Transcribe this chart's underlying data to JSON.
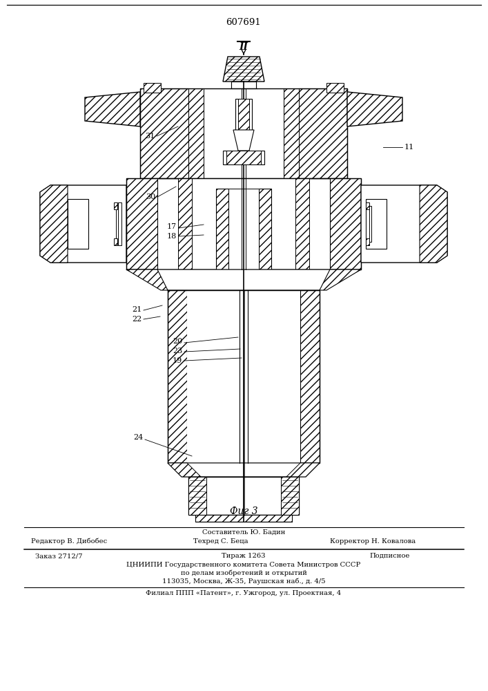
{
  "patent_number": "607691",
  "figure_label": "Фиг 3",
  "section_label": "II",
  "footer": {
    "editor": "Редактор В. Дибобес",
    "composer": "Составитель Ю. Бадин",
    "techred": "Техред С. Беца",
    "corrector": "Корректор Н. Ковалова",
    "order": "Заказ 2712/7",
    "circulation": "Тираж 1263",
    "subscription": "Подписное",
    "org1": "ЦНИИПИ Государственного комитета Совета Министров СССР",
    "org2": "по делам изобретений и открытий",
    "address": "113035, Москва, Ж-35, Раушская наб., д. 4/5",
    "branch": "Филиал ППП «Патент», г. Ужгород, ул. Проектная, 4"
  }
}
